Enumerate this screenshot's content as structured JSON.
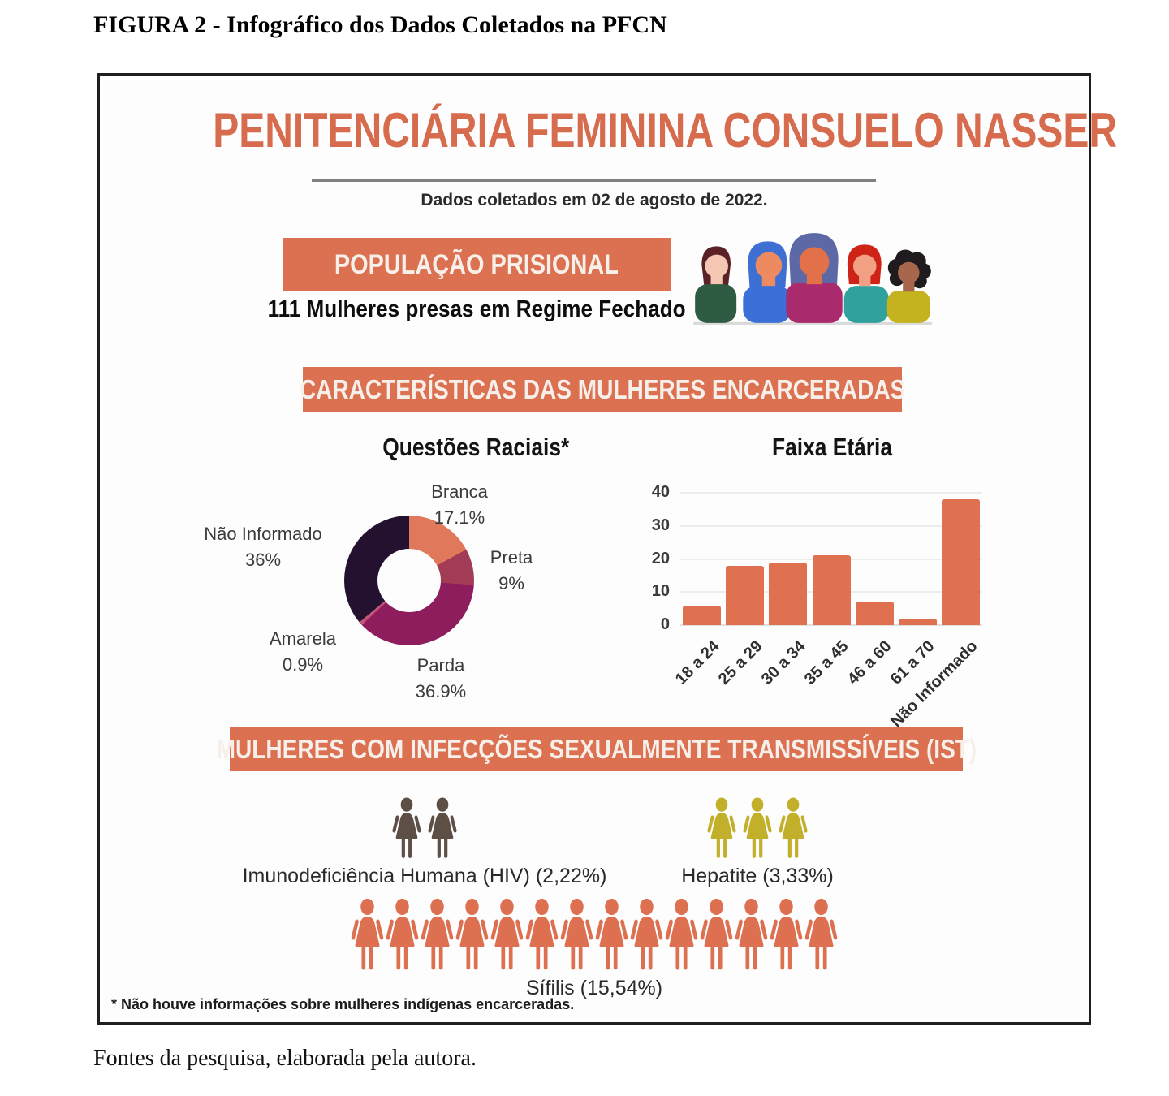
{
  "figure": {
    "caption_top": "FIGURA 2 - Infográfico dos Dados Coletados na PFCN",
    "caption_bottom": "Fontes da pesquisa, elaborada pela autora."
  },
  "infographic": {
    "title": "PENITENCIÁRIA FEMININA CONSUELO NASSER",
    "subtitle": "Dados coletados em 02 de agosto de 2022.",
    "population": {
      "banner": "POPULAÇÃO PRISIONAL",
      "caption": "111 Mulheres presas em Regime Fechado",
      "illustration": "five-women-illustration"
    },
    "characteristics_banner": "CARACTERÍSTICAS DAS MULHERES ENCARCERADAS",
    "ist": {
      "banner": "MULHERES COM INFECÇÕES SEXUALMENTE TRANSMISSÍVEIS (IST)",
      "groups": [
        {
          "name": "hiv",
          "label": "Imunodeficiência Humana (HIV) (2,22%)",
          "icon_count": 2,
          "icon": "woman-icon",
          "color": "#5d4f46"
        },
        {
          "name": "hepatite",
          "label": "Hepatite (3,33%)",
          "icon_count": 3,
          "icon": "woman-icon",
          "color": "#c2b02a"
        },
        {
          "name": "sifilis",
          "label": "Sífilis (15,54%)",
          "icon_count": 14,
          "icon": "woman-icon",
          "color": "#dd7050"
        }
      ]
    },
    "footnote": "* Não houve informações sobre mulheres indígenas encarceradas.",
    "colors": {
      "accent_orange": "#dc7152",
      "title_orange": "#d76b4d",
      "banner_text": "#f7efe9"
    }
  },
  "chart_data": [
    {
      "type": "pie",
      "donut": true,
      "title": "Questões Raciais*",
      "labels": [
        "Branca",
        "Preta",
        "Parda",
        "Amarela",
        "Não Informado"
      ],
      "values": [
        17.1,
        9,
        36.9,
        0.9,
        36
      ],
      "value_labels": [
        "17.1%",
        "9%",
        "36.9%",
        "0.9%",
        "36%"
      ],
      "colors": [
        "#e0795c",
        "#a23b55",
        "#8d1d5c",
        "#c05577",
        "#23112f"
      ],
      "start_angle_deg": 0,
      "direction": "clockwise",
      "legend_position": "around-labels"
    },
    {
      "type": "bar",
      "title": "Faixa Etária",
      "categories": [
        "18 a 24",
        "25 a 29",
        "30 a 34",
        "35 a 45",
        "46 a 60",
        "61 a 70",
        "Não Informado"
      ],
      "values": [
        6,
        18,
        19,
        21,
        7,
        2,
        38
      ],
      "bar_color": "#df7050",
      "xlabel": "",
      "ylabel": "",
      "ylim": [
        0,
        40
      ],
      "yticks": [
        0,
        10,
        20,
        30,
        40
      ],
      "grid": true,
      "x_label_rotation_deg": 45
    }
  ]
}
